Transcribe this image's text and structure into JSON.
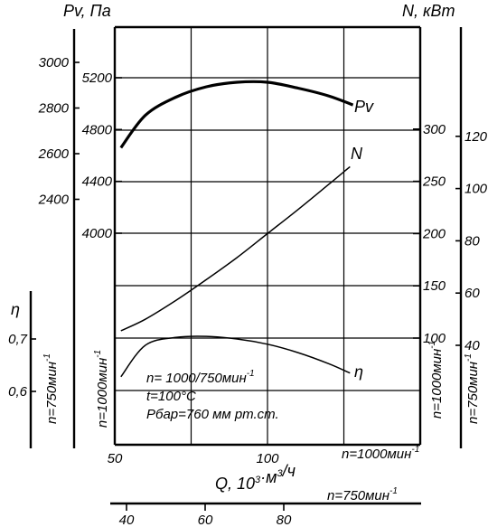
{
  "chart_data": {
    "type": "line",
    "x_axis": {
      "label": "Q, 10³·м³/ч",
      "label_parts": [
        "Q, 10",
        "3",
        "·м",
        "3",
        "/ч"
      ],
      "ticks": [
        50,
        100
      ],
      "range": [
        50,
        150
      ],
      "speed_label": "n=1000мин",
      "speed_exp": "-1"
    },
    "x_axis_secondary": {
      "ticks": [
        40,
        60,
        80
      ],
      "speed_label": "n=750мин",
      "speed_exp": "-1"
    },
    "axes": {
      "pv_title": "Pv, Па",
      "n_title": "N, кВт",
      "eta_title": "η",
      "pv_1000": {
        "ticks": [
          "4000",
          "4400",
          "4800",
          "5200"
        ],
        "speed_label": "n=1000мин",
        "speed_exp": "-1"
      },
      "pv_750": {
        "ticks": [
          "2400",
          "2600",
          "2800",
          "3000"
        ],
        "speed_label": "n=750мин",
        "speed_exp": "-1"
      },
      "eta": {
        "ticks": [
          "0,6",
          "0,7"
        ],
        "speed_label": "n=750мин",
        "speed_exp": "-1"
      },
      "n_1000": {
        "ticks": [
          "100",
          "150",
          "200",
          "250",
          "300"
        ],
        "speed_label": "n=1000мин",
        "speed_exp": "-1"
      },
      "n_750": {
        "ticks": [
          "40",
          "60",
          "80",
          "100",
          "120"
        ],
        "speed_label": "n=750мин",
        "speed_exp": "-1"
      }
    },
    "series": [
      {
        "name": "Pv",
        "axis": "pv_1000",
        "points": [
          [
            52,
            4660
          ],
          [
            60,
            4910
          ],
          [
            70,
            5050
          ],
          [
            80,
            5130
          ],
          [
            90,
            5165
          ],
          [
            100,
            5165
          ],
          [
            110,
            5120
          ],
          [
            120,
            5060
          ],
          [
            128,
            4990
          ]
        ]
      },
      {
        "name": "N",
        "axis": "n_1000",
        "points": [
          [
            52,
            107
          ],
          [
            60,
            118
          ],
          [
            70,
            136
          ],
          [
            80,
            156
          ],
          [
            90,
            177
          ],
          [
            100,
            200
          ],
          [
            110,
            223
          ],
          [
            120,
            247
          ],
          [
            127,
            264
          ]
        ]
      },
      {
        "name": "η",
        "axis": "eta",
        "points": [
          [
            52,
            0.628
          ],
          [
            60,
            0.688
          ],
          [
            70,
            0.703
          ],
          [
            80,
            0.705
          ],
          [
            90,
            0.7
          ],
          [
            100,
            0.69
          ],
          [
            110,
            0.674
          ],
          [
            120,
            0.653
          ],
          [
            127,
            0.635
          ]
        ]
      }
    ],
    "annotation": {
      "line1": "n= 1000/750мин",
      "line1_exp": "-1",
      "line2": "t=100°C",
      "line3": "Pбар=760 мм рт.ст."
    },
    "grid": true
  }
}
